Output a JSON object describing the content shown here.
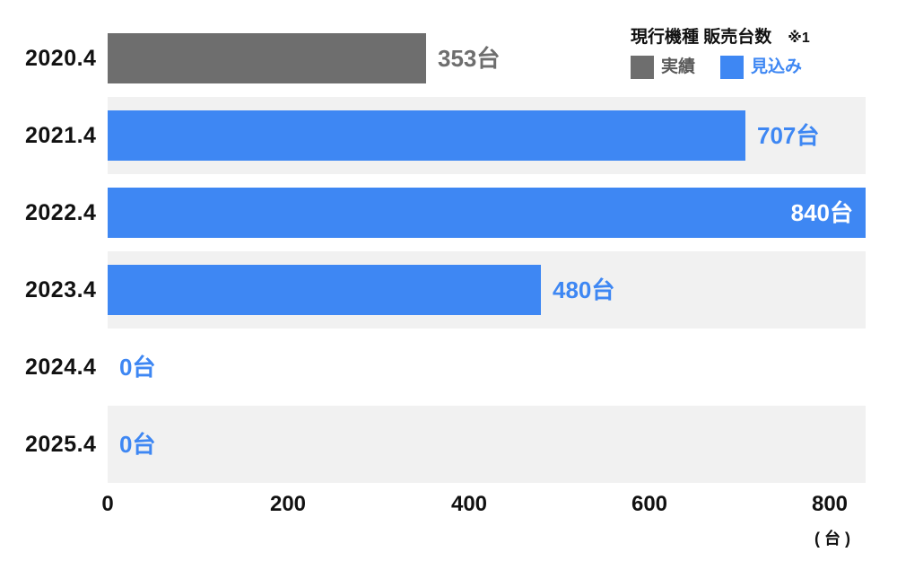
{
  "header": {
    "title": "現行機種 販売台数",
    "note": "※1"
  },
  "legend": {
    "items": [
      {
        "id": "actual",
        "label": "実績"
      },
      {
        "id": "forecast",
        "label": "見込み"
      }
    ]
  },
  "colors": {
    "actual": "#6e6e6e",
    "forecast": "#3e87f3",
    "actual_text": "#6e6e6e",
    "forecast_text": "#3e87f3",
    "inside_label": "#ffffff",
    "stripe": "#f1f1f1",
    "text": "#111111"
  },
  "chart_data": {
    "type": "bar",
    "orientation": "horizontal",
    "title": "現行機種 販売台数 ※1",
    "categories": [
      "2020.4",
      "2021.4",
      "2022.4",
      "2023.4",
      "2024.4",
      "2025.4"
    ],
    "series": [
      {
        "name": "実績",
        "values": [
          353,
          null,
          null,
          null,
          null,
          null
        ]
      },
      {
        "name": "見込み",
        "values": [
          null,
          707,
          840,
          480,
          0,
          0
        ]
      }
    ],
    "rows": [
      {
        "category": "2020.4",
        "value": 353,
        "label": "353台",
        "series": "actual",
        "label_inside": false,
        "striped": false
      },
      {
        "category": "2021.4",
        "value": 707,
        "label": "707台",
        "series": "forecast",
        "label_inside": false,
        "striped": true
      },
      {
        "category": "2022.4",
        "value": 840,
        "label": "840台",
        "series": "forecast",
        "label_inside": true,
        "striped": false
      },
      {
        "category": "2023.4",
        "value": 480,
        "label": "480台",
        "series": "forecast",
        "label_inside": false,
        "striped": true
      },
      {
        "category": "2024.4",
        "value": 0,
        "label": "0台",
        "series": "forecast",
        "label_inside": false,
        "striped": false
      },
      {
        "category": "2025.4",
        "value": 0,
        "label": "0台",
        "series": "forecast",
        "label_inside": false,
        "striped": true
      }
    ],
    "xlim": [
      0,
      840
    ],
    "x_ticks": [
      "0",
      "200",
      "400",
      "600",
      "800"
    ],
    "x_tick_values": [
      0,
      200,
      400,
      600,
      800
    ],
    "axis_unit": "( 台 )",
    "grid": false,
    "legend_position": "top-right"
  }
}
